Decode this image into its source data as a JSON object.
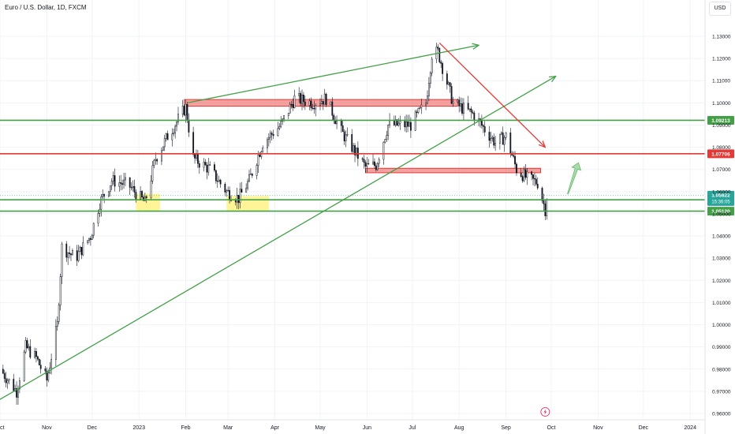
{
  "header": {
    "title": "Euro / U.S. Dollar, 1D, FXCM",
    "currency": "USD"
  },
  "colors": {
    "up": "#26a69a",
    "down": "#ef5350",
    "candle": "#131722",
    "green": "#43a047",
    "red": "#e53935",
    "yellow": "#fff176"
  },
  "chart_data": {
    "type": "candlestick",
    "title": "Euro / U.S. Dollar, 1D, FXCM",
    "ylim": [
      0.958,
      1.138
    ],
    "y_ticks": [
      "1.13000",
      "1.12000",
      "1.11000",
      "1.10000",
      "1.09000",
      "1.08000",
      "1.07000",
      "1.06000",
      "1.05000",
      "1.04000",
      "1.03000",
      "1.02000",
      "1.01000",
      "1.00000",
      "0.99000",
      "0.98000",
      "0.97000",
      "0.96000"
    ],
    "x_ticks": [
      {
        "label": "Oct",
        "date": "2022-10-01"
      },
      {
        "label": "Nov",
        "date": "2022-11-01"
      },
      {
        "label": "Dec",
        "date": "2022-12-01"
      },
      {
        "label": "2023",
        "date": "2023-01-01"
      },
      {
        "label": "Feb",
        "date": "2023-02-01"
      },
      {
        "label": "Mar",
        "date": "2023-03-01"
      },
      {
        "label": "Apr",
        "date": "2023-04-01"
      },
      {
        "label": "May",
        "date": "2023-05-01"
      },
      {
        "label": "Jun",
        "date": "2023-06-01"
      },
      {
        "label": "Jul",
        "date": "2023-07-01"
      },
      {
        "label": "Aug",
        "date": "2023-08-01"
      },
      {
        "label": "Sep",
        "date": "2023-09-01"
      },
      {
        "label": "Oct",
        "date": "2023-10-01"
      },
      {
        "label": "Nov",
        "date": "2023-11-01"
      },
      {
        "label": "Dec",
        "date": "2023-12-01"
      },
      {
        "label": "2024",
        "date": "2024-01-01"
      }
    ],
    "price_path": [
      {
        "date": "2022-10-01",
        "price": 0.98
      },
      {
        "date": "2022-10-12",
        "price": 0.97
      },
      {
        "date": "2022-10-18",
        "price": 0.99
      },
      {
        "date": "2022-10-25",
        "price": 0.985
      },
      {
        "date": "2022-11-01",
        "price": 0.975
      },
      {
        "date": "2022-11-08",
        "price": 1.0
      },
      {
        "date": "2022-11-11",
        "price": 1.035
      },
      {
        "date": "2022-11-20",
        "price": 1.03
      },
      {
        "date": "2022-11-30",
        "price": 1.04
      },
      {
        "date": "2022-12-06",
        "price": 1.055
      },
      {
        "date": "2022-12-14",
        "price": 1.065
      },
      {
        "date": "2022-12-25",
        "price": 1.063
      },
      {
        "date": "2023-01-05",
        "price": 1.055
      },
      {
        "date": "2023-01-12",
        "price": 1.075
      },
      {
        "date": "2023-01-20",
        "price": 1.085
      },
      {
        "date": "2023-02-01",
        "price": 1.098
      },
      {
        "date": "2023-02-06",
        "price": 1.075
      },
      {
        "date": "2023-02-17",
        "price": 1.07
      },
      {
        "date": "2023-02-28",
        "price": 1.06
      },
      {
        "date": "2023-03-08",
        "price": 1.057
      },
      {
        "date": "2023-03-15",
        "price": 1.065
      },
      {
        "date": "2023-03-24",
        "price": 1.082
      },
      {
        "date": "2023-04-05",
        "price": 1.09
      },
      {
        "date": "2023-04-14",
        "price": 1.102
      },
      {
        "date": "2023-04-26",
        "price": 1.1
      },
      {
        "date": "2023-05-05",
        "price": 1.102
      },
      {
        "date": "2023-05-15",
        "price": 1.087
      },
      {
        "date": "2023-05-31",
        "price": 1.071
      },
      {
        "date": "2023-06-07",
        "price": 1.072
      },
      {
        "date": "2023-06-15",
        "price": 1.09
      },
      {
        "date": "2023-06-30",
        "price": 1.09
      },
      {
        "date": "2023-07-10",
        "price": 1.1
      },
      {
        "date": "2023-07-14",
        "price": 1.122
      },
      {
        "date": "2023-07-18",
        "price": 1.123
      },
      {
        "date": "2023-07-28",
        "price": 1.1
      },
      {
        "date": "2023-08-10",
        "price": 1.095
      },
      {
        "date": "2023-08-25",
        "price": 1.082
      },
      {
        "date": "2023-09-01",
        "price": 1.085
      },
      {
        "date": "2023-09-08",
        "price": 1.07
      },
      {
        "date": "2023-09-15",
        "price": 1.066
      },
      {
        "date": "2023-09-22",
        "price": 1.064
      },
      {
        "date": "2023-09-27",
        "price": 1.052
      },
      {
        "date": "2023-09-28",
        "price": 1.058
      }
    ],
    "horizontal_levels": [
      {
        "price": 1.09213,
        "label": "1.09213",
        "color": "#43a047"
      },
      {
        "price": 1.07706,
        "label": "1.07706",
        "color": "#e53935"
      },
      {
        "price": 1.05633,
        "label": "1.05633",
        "color": "#43a047"
      },
      {
        "price": 1.0512,
        "label": "1.05120",
        "color": "#43a047"
      }
    ],
    "current_price": {
      "price": 1.05822,
      "label": "1.05822",
      "countdown": "15:36:05"
    },
    "zones": [
      {
        "from": "2023-01-31",
        "to": "2023-07-31",
        "low": 1.0985,
        "high": 1.1015,
        "color": "#ef5350"
      },
      {
        "from": "2023-05-31",
        "to": "2023-09-24",
        "low": 1.0685,
        "high": 1.0705,
        "color": "#ef5350"
      },
      {
        "from": "2022-12-30",
        "to": "2023-01-15",
        "low": 1.051,
        "high": 1.059,
        "color": "#fff176"
      },
      {
        "from": "2023-02-28",
        "to": "2023-03-28",
        "low": 1.051,
        "high": 1.058,
        "color": "#fff176"
      }
    ],
    "trendlines": [
      {
        "from": {
          "date": "2022-09-20",
          "price": 0.962
        },
        "to": {
          "date": "2023-10-04",
          "price": 1.112
        },
        "color": "#43a047",
        "arrow": true
      },
      {
        "from": {
          "date": "2023-02-02",
          "price": 1.1
        },
        "to": {
          "date": "2023-08-14",
          "price": 1.126
        },
        "color": "#43a047",
        "arrow": true
      },
      {
        "from": {
          "date": "2023-07-19",
          "price": 1.127
        },
        "to": {
          "date": "2023-09-27",
          "price": 1.08
        },
        "color": "#e53935",
        "arrow": true
      }
    ],
    "projection_arrow": {
      "from": {
        "date": "2023-10-12",
        "price": 1.059
      },
      "to": {
        "date": "2023-10-19",
        "price": 1.073
      },
      "color": "#66bb6a"
    }
  }
}
